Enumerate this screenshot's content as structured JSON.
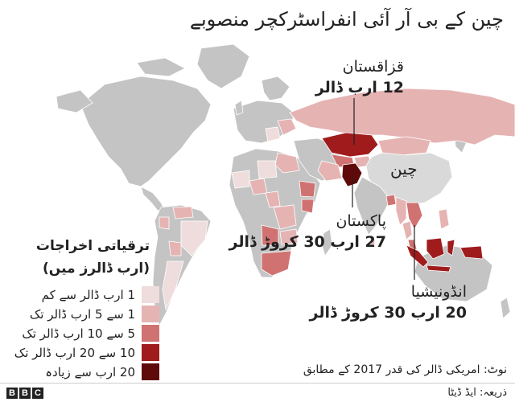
{
  "title": "چین کے بی آر آئی انفراسٹرکچر منصوبے",
  "legend": {
    "title": "ترقیاتی اخراجات (ارب ڈالرز میں)",
    "items": [
      {
        "label": "1 ارب ڈالر سے کم",
        "color": "#efdcdc"
      },
      {
        "label": "1 سے 5 ارب ڈالر تک",
        "color": "#e6b3b3"
      },
      {
        "label": "5 سے 10 ارب ڈالر تک",
        "color": "#d07272"
      },
      {
        "label": "10 سے 20 ارب ڈالر تک",
        "color": "#a01c1c"
      },
      {
        "label": "20 ارب سے زیادہ",
        "color": "#5e0a0a"
      }
    ]
  },
  "annotations": {
    "kazakhstan": {
      "name": "قزاقستان",
      "value": "12 ارب ڈالر"
    },
    "china": {
      "name": "چین"
    },
    "pakistan": {
      "name": "پاکستان",
      "value": "27 ارب 30 کروڑ ڈالر"
    },
    "indonesia": {
      "name": "انڈونیشیا",
      "value": "20 ارب 30 کروڑ ڈالر"
    }
  },
  "note": "نوٹ: امریکی ڈالر کی قدر 2017 کے مطابق",
  "source": "ذریعہ: ایڈ ڈیٹا",
  "brand": [
    "B",
    "B",
    "C"
  ],
  "colors": {
    "land": "#c4c4c4",
    "border": "#ffffff",
    "china": "#d9d9d9",
    "leader": "#222222"
  }
}
